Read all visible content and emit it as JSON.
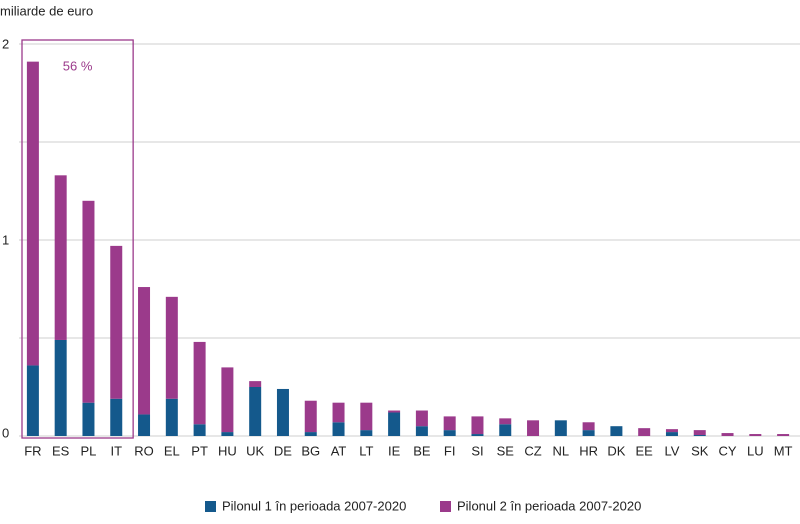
{
  "chart_data": {
    "type": "stacked_bar",
    "ylabel": "miliarde de euro",
    "categories": [
      "FR",
      "ES",
      "PL",
      "IT",
      "RO",
      "EL",
      "PT",
      "HU",
      "UK",
      "DE",
      "BG",
      "AT",
      "LT",
      "IE",
      "BE",
      "FI",
      "SI",
      "SE",
      "CZ",
      "NL",
      "HR",
      "DK",
      "EE",
      "LV",
      "SK",
      "CY",
      "LU",
      "MT"
    ],
    "series": [
      {
        "name": "Pilonul 1 în perioada 2007-2020",
        "color": "#14598c",
        "values": [
          0.36,
          0.49,
          0.17,
          0.19,
          0.11,
          0.19,
          0.06,
          0.02,
          0.25,
          0.24,
          0.02,
          0.07,
          0.03,
          0.12,
          0.05,
          0.03,
          0.01,
          0.06,
          0,
          0.08,
          0.03,
          0.05,
          0,
          0.02,
          0.005,
          0,
          0,
          0
        ]
      },
      {
        "name": "Pilonul 2 în perioada 2007-2020",
        "color": "#9b3a8b",
        "values": [
          1.55,
          0.84,
          1.03,
          0.78,
          0.65,
          0.52,
          0.42,
          0.33,
          0.03,
          0,
          0.16,
          0.1,
          0.14,
          0.01,
          0.08,
          0.07,
          0.09,
          0.03,
          0.08,
          0,
          0.04,
          0,
          0.04,
          0.015,
          0.025,
          0.015,
          0.01,
          0.01
        ]
      }
    ],
    "ylim": [
      0,
      2
    ],
    "yticks": [
      0,
      1,
      2
    ],
    "minor_grid": [
      0.5,
      1.5
    ],
    "grid": true,
    "annotation": {
      "text": "56 %",
      "from": "FR",
      "to": "IT",
      "color": "#9b3a8b"
    },
    "legend": "bottom"
  }
}
